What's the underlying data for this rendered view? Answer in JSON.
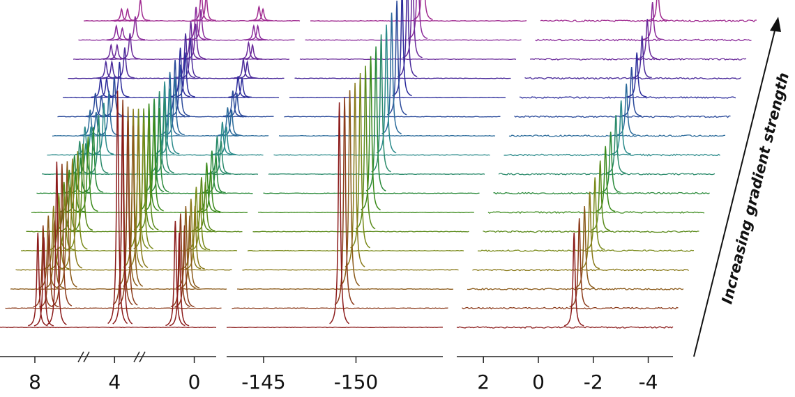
{
  "chart_data": {
    "type": "stacked-spectra",
    "axis_label": "Increasing gradient strength",
    "panels": [
      {
        "xlim": [
          9.75,
          -1.1
        ],
        "xticks": [
          8,
          4,
          0
        ],
        "peaks": [
          7.85,
          7.55,
          6.9,
          3.85,
          3.6,
          0.95,
          0.75
        ]
      },
      {
        "xlim": [
          -143.0,
          -154.7
        ],
        "xticks": [
          -145,
          -150
        ],
        "peaks": [
          -149.1
        ]
      },
      {
        "xlim": [
          2.97,
          -4.9
        ],
        "xticks": [
          2,
          0,
          -2,
          -4
        ],
        "peaks": [
          -1.3
        ]
      }
    ],
    "series": [
      {
        "color": "#8b1a1a",
        "values": [
          [
            40,
            38,
            70,
            100,
            90,
            45,
            40
          ],
          [
            95
          ],
          [
            40
          ]
        ]
      },
      {
        "color": "#8b3a1a",
        "values": [
          [
            35,
            33,
            61,
            88,
            79,
            40,
            35
          ],
          [
            89
          ],
          [
            38
          ]
        ]
      },
      {
        "color": "#8b5a1a",
        "values": [
          [
            31,
            29,
            54,
            77,
            69,
            35,
            31
          ],
          [
            84
          ],
          [
            35
          ]
        ]
      },
      {
        "color": "#8a7a1a",
        "values": [
          [
            27,
            26,
            47,
            68,
            61,
            30,
            27
          ],
          [
            79
          ],
          [
            33
          ]
        ]
      },
      {
        "color": "#7a8a1a",
        "values": [
          [
            24,
            23,
            42,
            60,
            54,
            27,
            24
          ],
          [
            75
          ],
          [
            31
          ]
        ]
      },
      {
        "color": "#5a8a1a",
        "values": [
          [
            21,
            20,
            37,
            52,
            47,
            23,
            21
          ],
          [
            70
          ],
          [
            30
          ]
        ]
      },
      {
        "color": "#3a8a1a",
        "values": [
          [
            18,
            17,
            32,
            46,
            41,
            21,
            18
          ],
          [
            66
          ],
          [
            28
          ]
        ]
      },
      {
        "color": "#2a8a3a",
        "values": [
          [
            16,
            15,
            28,
            40,
            36,
            18,
            16
          ],
          [
            62
          ],
          [
            26
          ]
        ]
      },
      {
        "color": "#2a8a6a",
        "values": [
          [
            14,
            13,
            25,
            35,
            32,
            16,
            14
          ],
          [
            59
          ],
          [
            25
          ]
        ]
      },
      {
        "color": "#2a8a8a",
        "values": [
          [
            12,
            12,
            22,
            31,
            28,
            14,
            12
          ],
          [
            55
          ],
          [
            23
          ]
        ]
      },
      {
        "color": "#2a6a9a",
        "values": [
          [
            11,
            10,
            19,
            27,
            25,
            12,
            11
          ],
          [
            52
          ],
          [
            22
          ]
        ]
      },
      {
        "color": "#2a4a9a",
        "values": [
          [
            10,
            9,
            17,
            24,
            22,
            11,
            10
          ],
          [
            49
          ],
          [
            21
          ]
        ]
      },
      {
        "color": "#2a2a9a",
        "values": [
          [
            8,
            8,
            15,
            21,
            19,
            9,
            8
          ],
          [
            46
          ],
          [
            19
          ]
        ]
      },
      {
        "color": "#4a2a9a",
        "values": [
          [
            7,
            7,
            13,
            19,
            17,
            8,
            7
          ],
          [
            44
          ],
          [
            18
          ]
        ]
      },
      {
        "color": "#6a2a9a",
        "values": [
          [
            6,
            6,
            11,
            16,
            15,
            7,
            6
          ],
          [
            41
          ],
          [
            17
          ]
        ]
      },
      {
        "color": "#8a2a9a",
        "values": [
          [
            6,
            5,
            10,
            14,
            13,
            6,
            6
          ],
          [
            39
          ],
          [
            16
          ]
        ]
      },
      {
        "color": "#a02a90",
        "values": [
          [
            5,
            5,
            9,
            13,
            11,
            6,
            5
          ],
          [
            36
          ],
          [
            15
          ]
        ]
      }
    ]
  }
}
